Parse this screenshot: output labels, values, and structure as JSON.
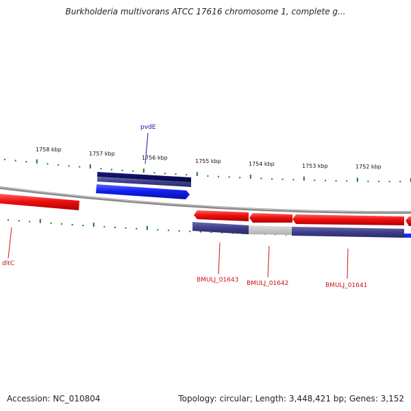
{
  "title": "Burkholderia multivorans ATCC 17616 chromosome 1, complete g...",
  "footer": {
    "accession": "Accession: NC_010804",
    "summary": "Topology: circular; Length: 3,448,421 bp; Genes: 3,152"
  },
  "kbp_labels": [
    "1758 kbp",
    "1757 kbp",
    "1756 kbp",
    "1755 kbp",
    "1754 kbp",
    "1753 kbp",
    "1752 kbp"
  ],
  "genes": [
    {
      "name": "pvdE",
      "color": "#1010b0"
    },
    {
      "name": "dltC",
      "color": "#cc1010"
    },
    {
      "name": "BMULJ_01643",
      "color": "#cc1010"
    },
    {
      "name": "BMULJ_01642",
      "color": "#cc1010"
    },
    {
      "name": "BMULJ_01641",
      "color": "#cc1010"
    }
  ],
  "colors": {
    "forward_gene": "#1f2cf0",
    "forward_gene_dark": "#0a0a6e",
    "reverse_gene": "#e81010",
    "feature_bar": "#4a4a90",
    "feature_bar_light": "#c8c8c8",
    "backbone": "#888888",
    "ticks": "#1a7a1a"
  }
}
